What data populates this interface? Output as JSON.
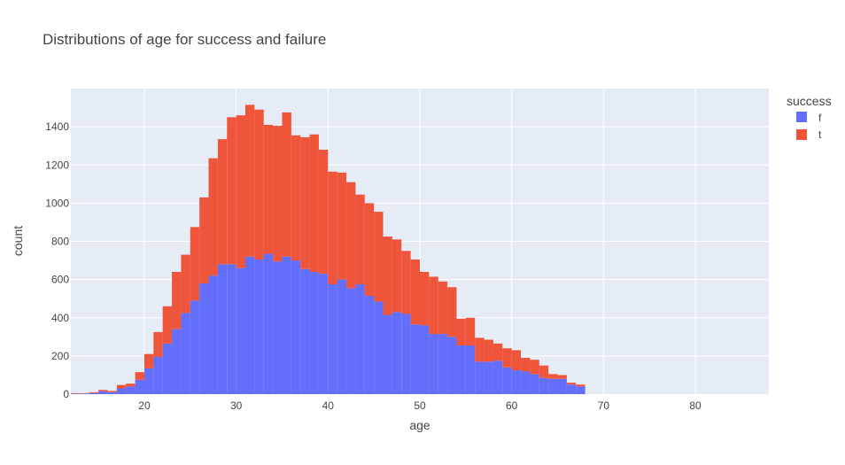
{
  "chart_data": {
    "type": "bar",
    "title": "Distributions of age for success and failure",
    "xlabel": "age",
    "ylabel": "count",
    "barmode": "stack",
    "bin_width": 1,
    "xlim": [
      12,
      88
    ],
    "ylim": [
      0,
      1600
    ],
    "x_ticks": [
      20,
      30,
      40,
      50,
      60,
      70,
      80
    ],
    "y_ticks": [
      0,
      200,
      400,
      600,
      800,
      1000,
      1200,
      1400
    ],
    "grid": true,
    "legend_title": "success",
    "legend_position": "top-right",
    "bins": [
      12,
      13,
      14,
      15,
      16,
      17,
      18,
      19,
      20,
      21,
      22,
      23,
      24,
      25,
      26,
      27,
      28,
      29,
      30,
      31,
      32,
      33,
      34,
      35,
      36,
      37,
      38,
      39,
      40,
      41,
      42,
      43,
      44,
      45,
      46,
      47,
      48,
      49,
      50,
      51,
      52,
      53,
      54,
      55,
      56,
      57,
      58,
      59,
      60,
      61,
      62,
      63,
      64,
      65,
      66,
      67
    ],
    "series": [
      {
        "name": "f",
        "color": "#636efa",
        "values": [
          2,
          3,
          5,
          15,
          10,
          30,
          40,
          75,
          135,
          195,
          265,
          340,
          425,
          490,
          580,
          620,
          680,
          680,
          660,
          720,
          705,
          735,
          695,
          720,
          700,
          655,
          640,
          630,
          575,
          600,
          555,
          575,
          515,
          485,
          415,
          430,
          420,
          365,
          360,
          315,
          315,
          300,
          255,
          255,
          170,
          170,
          175,
          140,
          125,
          120,
          105,
          85,
          80,
          80,
          50,
          40
        ]
      },
      {
        "name": "t",
        "color": "#ef553b",
        "values": [
          3,
          2,
          5,
          7,
          7,
          18,
          15,
          40,
          75,
          130,
          195,
          300,
          305,
          385,
          450,
          615,
          655,
          770,
          800,
          795,
          785,
          675,
          710,
          755,
          655,
          690,
          720,
          650,
          590,
          560,
          555,
          470,
          485,
          470,
          410,
          380,
          330,
          340,
          280,
          300,
          275,
          260,
          140,
          145,
          125,
          115,
          90,
          100,
          105,
          70,
          75,
          65,
          25,
          20,
          10,
          10
        ]
      }
    ]
  }
}
